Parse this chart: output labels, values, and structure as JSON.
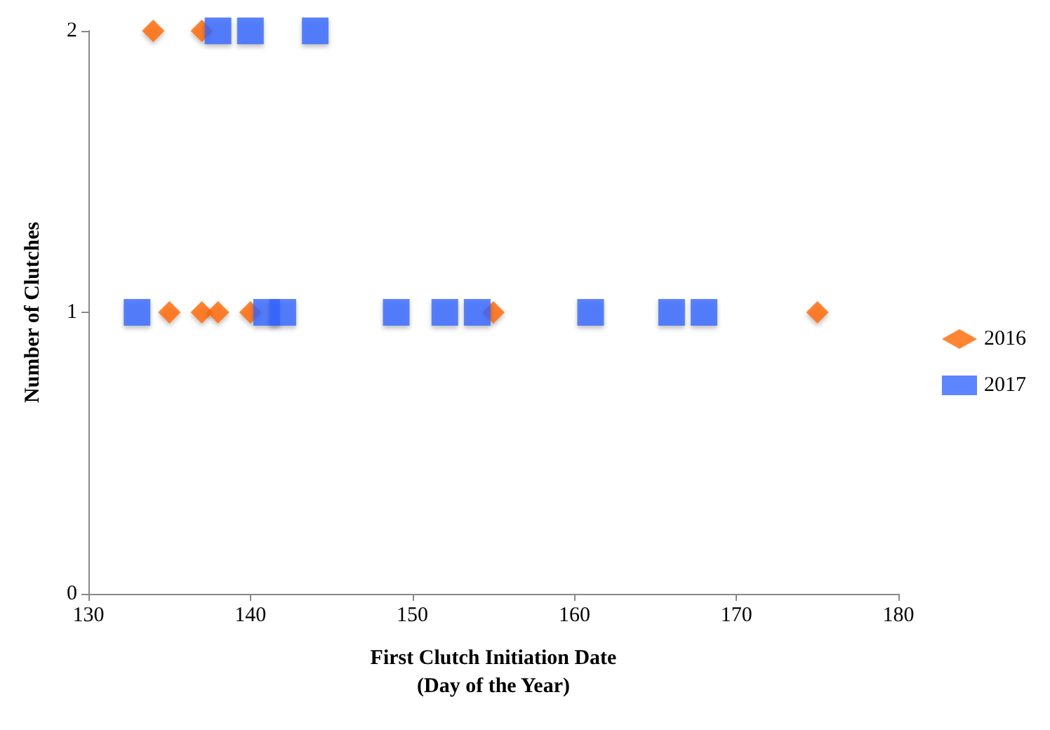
{
  "chart_data": {
    "type": "scatter",
    "xlabel": "First Clutch Initiation Date\n(Day of the Year)",
    "ylabel": "Number of Clutches",
    "xlim": [
      130,
      180
    ],
    "xticks": [
      130,
      140,
      150,
      160,
      170,
      180
    ],
    "ylim": [
      0,
      2
    ],
    "yticks": [
      0,
      1,
      2
    ],
    "grid": false,
    "legend": "right",
    "series": [
      {
        "name": "2016",
        "color": "#ff6600",
        "marker": "diamond",
        "x": [
          134,
          137,
          135,
          137,
          138,
          140,
          155,
          175
        ],
        "values": [
          2,
          2,
          1,
          1,
          1,
          1,
          1,
          1
        ]
      },
      {
        "name": "2017",
        "color": "#3366ff",
        "marker": "square",
        "x": [
          138,
          140,
          144,
          133,
          141,
          142,
          149,
          152,
          154,
          161,
          166,
          168
        ],
        "values": [
          2,
          2,
          2,
          1,
          1,
          1,
          1,
          1,
          1,
          1,
          1,
          1
        ]
      }
    ]
  }
}
